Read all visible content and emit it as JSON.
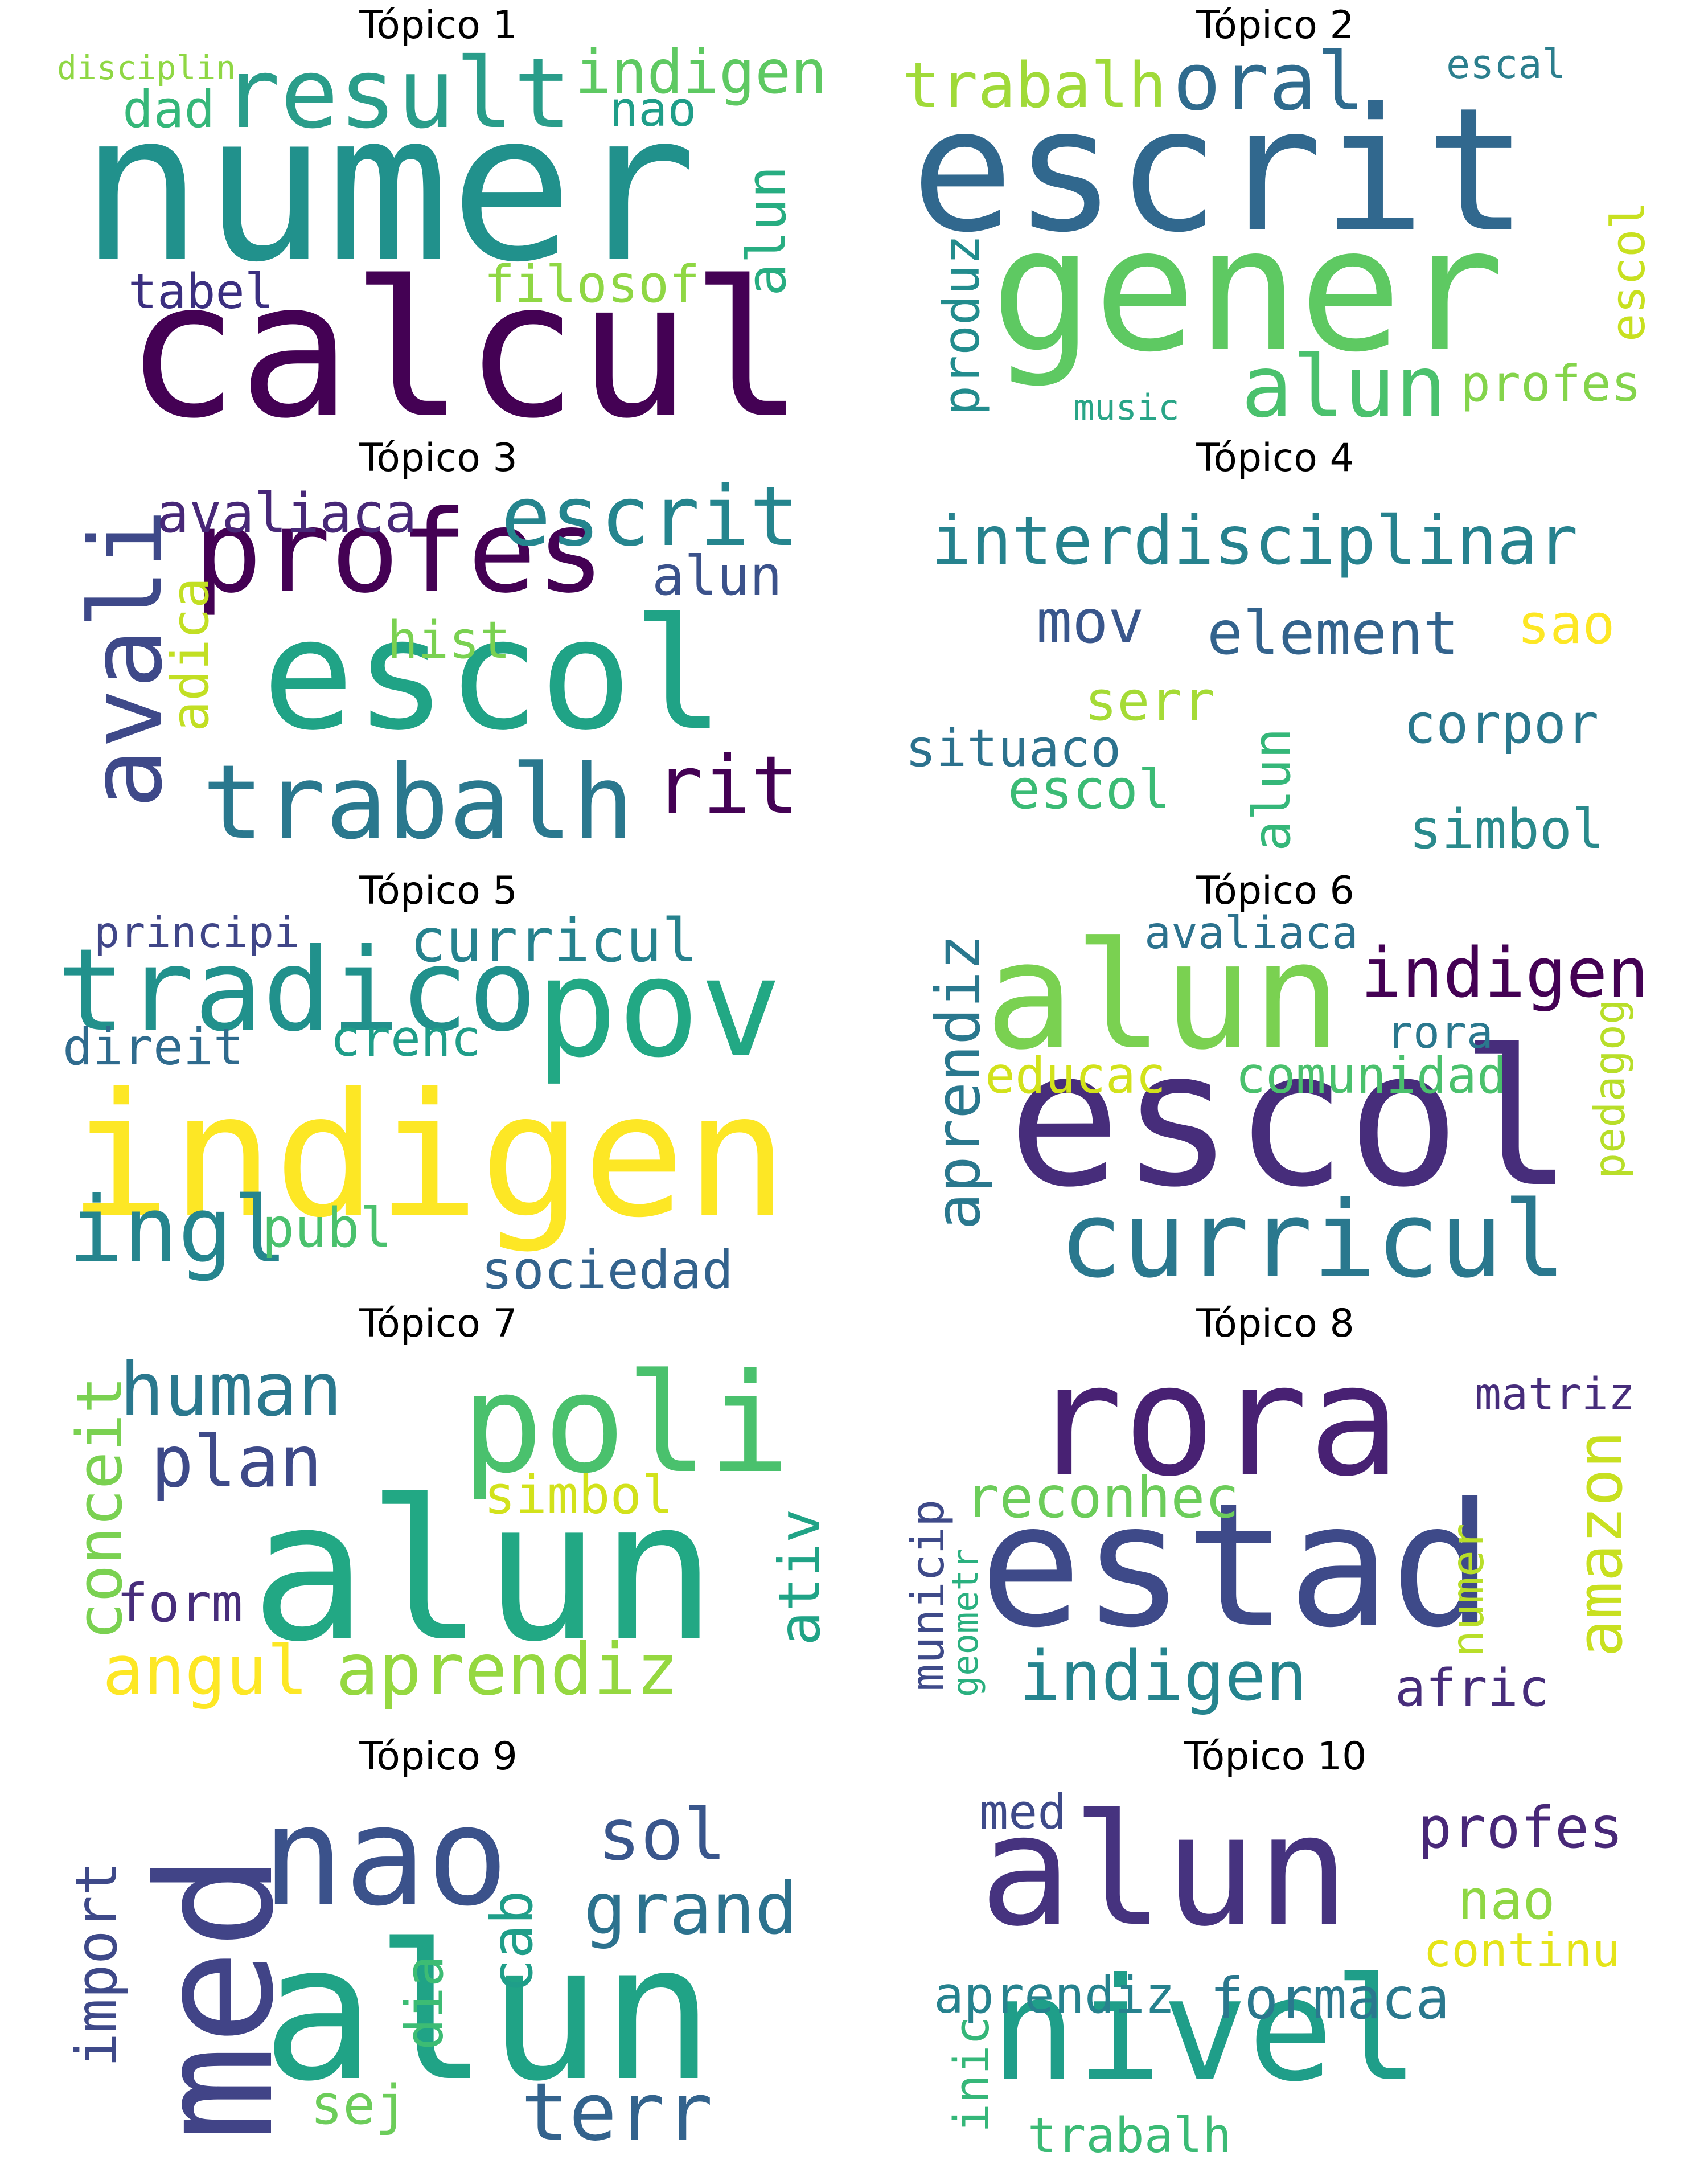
{
  "title_prefix": "Tópico",
  "topics": [
    {
      "title": "Tópico 1",
      "words": [
        {
          "t": "numer",
          "c": "#21918c"
        },
        {
          "t": "calcul",
          "c": "#440154"
        },
        {
          "t": "result",
          "c": "#2a9d8a"
        },
        {
          "t": "indigen",
          "c": "#5ec962"
        },
        {
          "t": "disciplin",
          "c": "#8fd744"
        },
        {
          "t": "dad",
          "c": "#35b779"
        },
        {
          "t": "nao",
          "c": "#1f9e89"
        },
        {
          "t": "alun",
          "c": "#27ad81"
        },
        {
          "t": "tabel",
          "c": "#3b2f80"
        },
        {
          "t": "filosof",
          "c": "#8fd744"
        }
      ]
    },
    {
      "title": "Tópico 2",
      "words": [
        {
          "t": "escrit",
          "c": "#31688e"
        },
        {
          "t": "gener",
          "c": "#5ec962"
        },
        {
          "t": "trabalh",
          "c": "#a0da39"
        },
        {
          "t": "oral",
          "c": "#2f6b8e"
        },
        {
          "t": "escal",
          "c": "#2c7f8e"
        },
        {
          "t": "alun",
          "c": "#4ac16d"
        },
        {
          "t": "profes",
          "c": "#84d44b"
        },
        {
          "t": "produz",
          "c": "#228c8d"
        },
        {
          "t": "escol",
          "c": "#c8e020"
        },
        {
          "t": "music",
          "c": "#29a587"
        }
      ]
    },
    {
      "title": "Tópico 3",
      "words": [
        {
          "t": "escol",
          "c": "#20a386"
        },
        {
          "t": "profes",
          "c": "#440154"
        },
        {
          "t": "avali",
          "c": "#3e4989"
        },
        {
          "t": "avaliaca",
          "c": "#482878"
        },
        {
          "t": "escrit",
          "c": "#25858e"
        },
        {
          "t": "alun",
          "c": "#3b528b"
        },
        {
          "t": "hist",
          "c": "#7ad151"
        },
        {
          "t": "adica",
          "c": "#c2df23"
        },
        {
          "t": "trabalh",
          "c": "#2a788e"
        },
        {
          "t": "rit",
          "c": "#440154"
        }
      ]
    },
    {
      "title": "Tópico 4",
      "words": [
        {
          "t": "interdisciplinar",
          "c": "#26828e"
        },
        {
          "t": "mov",
          "c": "#39568c"
        },
        {
          "t": "element",
          "c": "#33638d"
        },
        {
          "t": "sao",
          "c": "#fde725"
        },
        {
          "t": "serr",
          "c": "#a5db36"
        },
        {
          "t": "situaco",
          "c": "#2c728e"
        },
        {
          "t": "corpor",
          "c": "#2a788e"
        },
        {
          "t": "escol",
          "c": "#3bbb75"
        },
        {
          "t": "alun",
          "c": "#35b779"
        },
        {
          "t": "simbol",
          "c": "#2a8a8c"
        }
      ]
    },
    {
      "title": "Tópico 5",
      "words": [
        {
          "t": "indigen",
          "c": "#fde725"
        },
        {
          "t": "tradico",
          "c": "#21918c"
        },
        {
          "t": "pov",
          "c": "#22a884"
        },
        {
          "t": "principi",
          "c": "#404688"
        },
        {
          "t": "curricul",
          "c": "#26828e"
        },
        {
          "t": "direit",
          "c": "#2f6b8e"
        },
        {
          "t": "crenc",
          "c": "#1f9e89"
        },
        {
          "t": "ingl",
          "c": "#25858e"
        },
        {
          "t": "publ",
          "c": "#4ac16d"
        },
        {
          "t": "sociedad",
          "c": "#33638d"
        }
      ]
    },
    {
      "title": "Tópico 6",
      "words": [
        {
          "t": "escol",
          "c": "#472d7b"
        },
        {
          "t": "alun",
          "c": "#7ad151"
        },
        {
          "t": "avaliaca",
          "c": "#2c728e"
        },
        {
          "t": "indigen",
          "c": "#440154"
        },
        {
          "t": "rora",
          "c": "#2a788e"
        },
        {
          "t": "aprendiz",
          "c": "#2a788e"
        },
        {
          "t": "educac",
          "c": "#d2e21b"
        },
        {
          "t": "comunidad",
          "c": "#4ac16d"
        },
        {
          "t": "pedagog",
          "c": "#b8de29"
        },
        {
          "t": "curricul",
          "c": "#2a788e"
        }
      ]
    },
    {
      "title": "Tópico 7",
      "words": [
        {
          "t": "alun",
          "c": "#22a884"
        },
        {
          "t": "poli",
          "c": "#4ac16d"
        },
        {
          "t": "human",
          "c": "#2a788e"
        },
        {
          "t": "conceit",
          "c": "#7ad151"
        },
        {
          "t": "plan",
          "c": "#3e4a89"
        },
        {
          "t": "simbol",
          "c": "#d2e21b"
        },
        {
          "t": "ativ",
          "c": "#20a386"
        },
        {
          "t": "form",
          "c": "#472d7b"
        },
        {
          "t": "angul",
          "c": "#fde725"
        },
        {
          "t": "aprendiz",
          "c": "#95d840"
        }
      ]
    },
    {
      "title": "Tópico 8",
      "words": [
        {
          "t": "estad",
          "c": "#3e4a89"
        },
        {
          "t": "rora",
          "c": "#482173"
        },
        {
          "t": "matriz",
          "c": "#472d7b"
        },
        {
          "t": "reconhec",
          "c": "#6ccd5a"
        },
        {
          "t": "amazon",
          "c": "#c8e020"
        },
        {
          "t": "municip",
          "c": "#3e4a89"
        },
        {
          "t": "geometr",
          "c": "#2ab07f"
        },
        {
          "t": "numer",
          "c": "#b8de29"
        },
        {
          "t": "indigen",
          "c": "#25848e"
        },
        {
          "t": "afric",
          "c": "#472d7b"
        }
      ]
    },
    {
      "title": "Tópico 9",
      "words": [
        {
          "t": "alun",
          "c": "#20a386"
        },
        {
          "t": "med",
          "c": "#414487"
        },
        {
          "t": "nao",
          "c": "#3b528b"
        },
        {
          "t": "sol",
          "c": "#39568c"
        },
        {
          "t": "grand",
          "c": "#2c728e"
        },
        {
          "t": "import",
          "c": "#3e4989"
        },
        {
          "t": "cab",
          "c": "#1f9e89"
        },
        {
          "t": "dia",
          "c": "#3dbc74"
        },
        {
          "t": "sej",
          "c": "#6ccd5a"
        },
        {
          "t": "terr",
          "c": "#33638d"
        }
      ]
    },
    {
      "title": "Tópico 10",
      "words": [
        {
          "t": "alun",
          "c": "#46337f"
        },
        {
          "t": "nivel",
          "c": "#1f9e89"
        },
        {
          "t": "med",
          "c": "#3e4a89"
        },
        {
          "t": "profes",
          "c": "#482878"
        },
        {
          "t": "nao",
          "c": "#8fd744"
        },
        {
          "t": "continu",
          "c": "#e5e419"
        },
        {
          "t": "aprendiz",
          "c": "#26828e"
        },
        {
          "t": "formaca",
          "c": "#2a788e"
        },
        {
          "t": "inic",
          "c": "#35b779"
        },
        {
          "t": "trabalh",
          "c": "#3bbb75"
        }
      ]
    }
  ]
}
